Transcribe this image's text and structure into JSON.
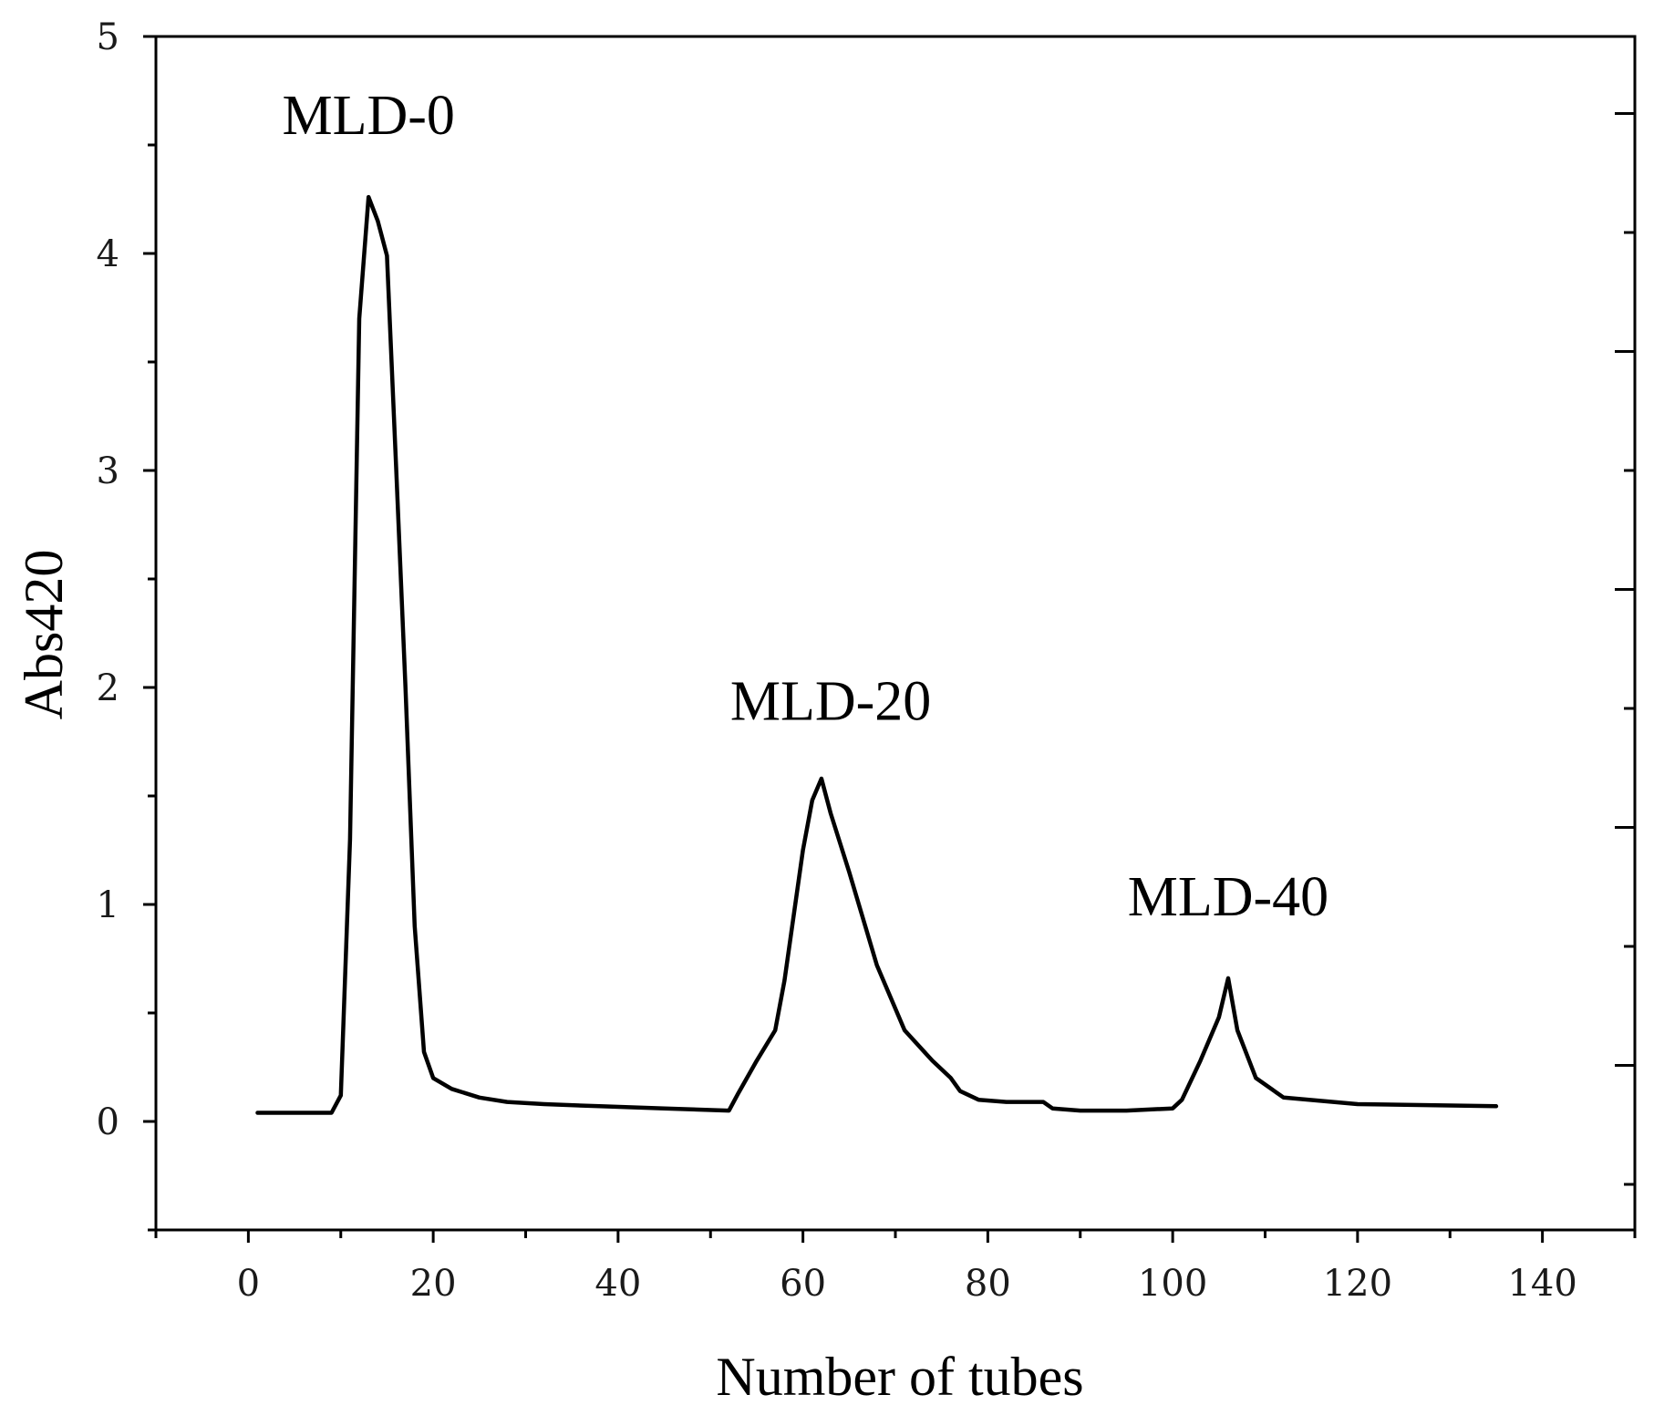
{
  "chart_data": {
    "type": "line",
    "title": "",
    "xlabel": "Number of tubes",
    "ylabel": "Abs420",
    "xlim": [
      -10,
      150
    ],
    "ylim": [
      -0.5,
      5
    ],
    "xticks": [
      0,
      20,
      40,
      60,
      80,
      100,
      120,
      140
    ],
    "xtick_labels": [
      "0",
      "20",
      "40",
      "60",
      "80",
      "100",
      "120",
      "140"
    ],
    "yticks": [
      0,
      1,
      2,
      3,
      4,
      5
    ],
    "ytick_labels": [
      "0",
      "1",
      "2",
      "3",
      "4",
      "5"
    ],
    "grid": false,
    "line_color": "#000000",
    "series": [
      {
        "name": "Abs420",
        "x": [
          1,
          4,
          7,
          9,
          10,
          11,
          12,
          13,
          14,
          15,
          16,
          17,
          18,
          19,
          20,
          22,
          25,
          28,
          32,
          38,
          45,
          52,
          53,
          55,
          57,
          58,
          59,
          60,
          61,
          62,
          63,
          65,
          68,
          71,
          74,
          76,
          77,
          79,
          82,
          86,
          87,
          90,
          95,
          100,
          101,
          103,
          105,
          106,
          107,
          109,
          112,
          120,
          135
        ],
        "y": [
          0.04,
          0.04,
          0.04,
          0.04,
          0.12,
          1.3,
          3.7,
          4.26,
          4.15,
          3.99,
          3.0,
          2.0,
          0.9,
          0.32,
          0.2,
          0.15,
          0.11,
          0.09,
          0.08,
          0.07,
          0.06,
          0.05,
          0.13,
          0.28,
          0.42,
          0.65,
          0.95,
          1.25,
          1.48,
          1.58,
          1.42,
          1.15,
          0.72,
          0.42,
          0.28,
          0.2,
          0.14,
          0.1,
          0.09,
          0.09,
          0.06,
          0.05,
          0.05,
          0.06,
          0.1,
          0.28,
          0.48,
          0.66,
          0.42,
          0.2,
          0.11,
          0.08,
          0.07
        ]
      }
    ],
    "annotations": [
      {
        "text": "MLD-0",
        "x": 13,
        "y": 4.55
      },
      {
        "text": "MLD-20",
        "x": 63,
        "y": 1.85
      },
      {
        "text": "MLD-40",
        "x": 106,
        "y": 0.95
      }
    ]
  }
}
